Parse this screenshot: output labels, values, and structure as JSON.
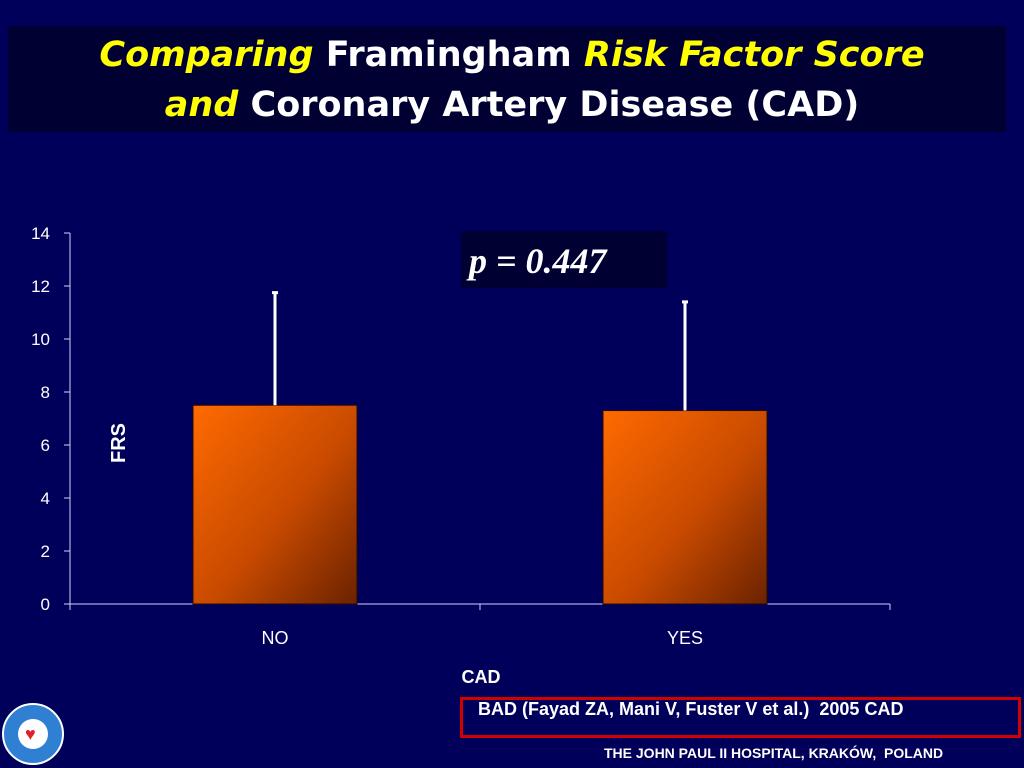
{
  "title": {
    "part1": "Comparing",
    "part2": "Framingham",
    "part3": "Risk Factor Score",
    "part4": "and",
    "part5": "Coronary Artery Disease (CAD)"
  },
  "p_value": "p = 0.447",
  "reference": "BAD (Fayad ZA, Mani V, Fuster V et al.)  2005 CAD",
  "footer": "THE JOHN PAUL II HOSPITAL, KRAKÓW,  POLAND",
  "colors": {
    "background": "#00005a",
    "bar": "#ff6600",
    "accent": "#ffff00",
    "reference_border": "#d40000"
  },
  "logo_icon": "heart-icon",
  "chart_data": {
    "type": "bar",
    "categories": [
      "NO",
      "YES"
    ],
    "values": [
      7.5,
      7.3
    ],
    "error_upper": [
      11.75,
      11.4
    ],
    "xlabel": "CAD",
    "ylabel": "FRS",
    "ylim": [
      0,
      14
    ],
    "yticks": [
      0,
      2,
      4,
      6,
      8,
      10,
      12,
      14
    ],
    "grid": false,
    "legend": "none"
  }
}
